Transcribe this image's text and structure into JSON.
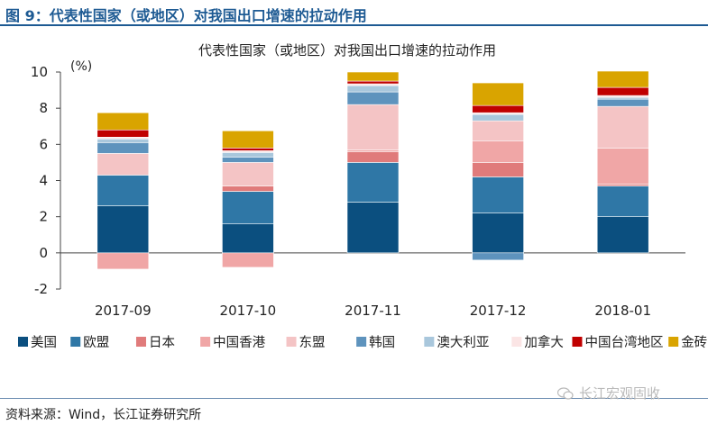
{
  "header": {
    "figure_title": "图 9：代表性国家（或地区）对我国出口增速的拉动作用"
  },
  "chart_data": {
    "type": "bar",
    "stacked": true,
    "title": "代表性国家（或地区）对我国出口增速的拉动作用",
    "ylabel": "(%)",
    "ylim": [
      -2,
      10
    ],
    "yticks": [
      -2,
      0,
      2,
      4,
      6,
      8,
      10
    ],
    "grid": false,
    "legend_position": "bottom",
    "categories": [
      "2017-09",
      "2017-10",
      "2017-11",
      "2017-12",
      "2018-01"
    ],
    "series": [
      {
        "name": "美国",
        "color": "#0b4f7f",
        "values": [
          2.6,
          1.6,
          2.8,
          2.2,
          2.0
        ]
      },
      {
        "name": "欧盟",
        "color": "#2f77a6",
        "values": [
          1.7,
          1.8,
          2.2,
          2.0,
          1.7
        ]
      },
      {
        "name": "日本",
        "color": "#e07b7b",
        "values": [
          0.0,
          0.3,
          0.6,
          0.8,
          0.1
        ]
      },
      {
        "name": "中国香港",
        "color": "#f0a6a6",
        "values": [
          -0.9,
          -0.8,
          0.1,
          1.2,
          2.0
        ]
      },
      {
        "name": "东盟",
        "color": "#f4c4c5",
        "values": [
          1.2,
          1.3,
          2.5,
          1.1,
          2.3
        ]
      },
      {
        "name": "韩国",
        "color": "#5e93bd",
        "values": [
          0.6,
          0.3,
          0.7,
          -0.4,
          0.4
        ]
      },
      {
        "name": "澳大利亚",
        "color": "#a9c7dc",
        "values": [
          0.2,
          0.25,
          0.35,
          0.35,
          0.1
        ]
      },
      {
        "name": "加拿大",
        "color": "#fbe5e5",
        "values": [
          0.1,
          0.1,
          0.1,
          0.1,
          0.1
        ]
      },
      {
        "name": "中国台湾地区",
        "color": "#c00000",
        "values": [
          0.4,
          0.15,
          0.15,
          0.4,
          0.45
        ]
      },
      {
        "name": "金砖国家",
        "color": "#d9a400",
        "values": [
          0.95,
          0.95,
          0.5,
          1.25,
          0.9
        ]
      }
    ]
  },
  "footer": {
    "source": "资料来源：Wind，长江证券研究所",
    "watermark": "长江宏观固收",
    "watermark_icon": "wechat-icon"
  }
}
